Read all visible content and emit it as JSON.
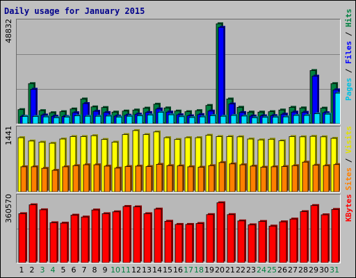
{
  "window": {
    "title": "Daily usage for January 2015"
  },
  "colors": {
    "pages": "#00e0ff",
    "files": "#0000ff",
    "hits": "#008040",
    "visits": "#ffff00",
    "sites": "#ff8000",
    "kbytes": "#ff0000",
    "weekday_label": "#000000",
    "weekend_label": "#008040"
  },
  "chart_data": [
    {
      "type": "bar",
      "panel": "hits-files-pages",
      "categories": [
        "1",
        "2",
        "3",
        "4",
        "5",
        "6",
        "7",
        "8",
        "9",
        "10",
        "11",
        "12",
        "13",
        "14",
        "15",
        "16",
        "17",
        "18",
        "19",
        "20",
        "21",
        "22",
        "23",
        "24",
        "25",
        "26",
        "27",
        "28",
        "29",
        "30",
        "31"
      ],
      "ymax_label": "48832",
      "ylim": [
        0,
        48832
      ],
      "grid": true,
      "series": [
        {
          "name": "Hits",
          "values": [
            6800,
            19300,
            6300,
            5300,
            5800,
            7100,
            11900,
            8100,
            7800,
            5600,
            6100,
            6600,
            7500,
            9400,
            7600,
            6100,
            5800,
            6300,
            8800,
            48100,
            11900,
            7900,
            5600,
            5600,
            5800,
            6600,
            7900,
            7600,
            25600,
            7500,
            19300
          ]
        },
        {
          "name": "Files",
          "values": [
            3600,
            16600,
            4200,
            3600,
            3500,
            5300,
            9700,
            6000,
            5400,
            3700,
            4100,
            4600,
            5400,
            7100,
            5600,
            4300,
            3800,
            4400,
            6100,
            46400,
            9500,
            5400,
            3700,
            3800,
            3900,
            4600,
            5600,
            5500,
            22900,
            5300,
            16300
          ]
        },
        {
          "name": "Pages",
          "values": [
            3500,
            3500,
            3300,
            2900,
            3200,
            3800,
            3600,
            3600,
            3700,
            3200,
            3600,
            3800,
            4200,
            5500,
            4300,
            3400,
            3000,
            3300,
            3900,
            3600,
            4000,
            3700,
            2900,
            3100,
            3200,
            3300,
            4000,
            4000,
            4800,
            4600,
            14700
          ]
        }
      ]
    },
    {
      "type": "bar",
      "panel": "visits-sites",
      "categories": [
        "1",
        "2",
        "3",
        "4",
        "5",
        "6",
        "7",
        "8",
        "9",
        "10",
        "11",
        "12",
        "13",
        "14",
        "15",
        "16",
        "17",
        "18",
        "19",
        "20",
        "21",
        "22",
        "23",
        "24",
        "25",
        "26",
        "27",
        "28",
        "29",
        "30",
        "31"
      ],
      "ymax_label": "1441",
      "ylim": [
        0,
        1441
      ],
      "grid": true,
      "series": [
        {
          "name": "Visits",
          "values": [
            1220,
            1145,
            1120,
            1095,
            1190,
            1245,
            1245,
            1265,
            1180,
            1120,
            1290,
            1380,
            1290,
            1350,
            1220,
            1180,
            1220,
            1220,
            1275,
            1245,
            1245,
            1240,
            1190,
            1170,
            1185,
            1150,
            1245,
            1240,
            1250,
            1240,
            1205
          ]
        },
        {
          "name": "Sites",
          "values": [
            565,
            565,
            530,
            485,
            565,
            590,
            610,
            610,
            580,
            535,
            570,
            580,
            570,
            620,
            590,
            585,
            565,
            555,
            590,
            660,
            630,
            610,
            580,
            555,
            565,
            570,
            590,
            670,
            600,
            590,
            615
          ]
        }
      ]
    },
    {
      "type": "bar",
      "panel": "kbytes",
      "categories": [
        "1",
        "2",
        "3",
        "4",
        "5",
        "6",
        "7",
        "8",
        "9",
        "10",
        "11",
        "12",
        "13",
        "14",
        "15",
        "16",
        "17",
        "18",
        "19",
        "20",
        "21",
        "22",
        "23",
        "24",
        "25",
        "26",
        "27",
        "28",
        "29",
        "30",
        "31"
      ],
      "ymax_label": "360570",
      "ylim": [
        0,
        360570
      ],
      "grid": true,
      "series": [
        {
          "name": "KBytes",
          "values": [
            265000,
            313000,
            286000,
            216000,
            214000,
            257000,
            247000,
            285000,
            265000,
            275000,
            304000,
            302000,
            265000,
            290000,
            224000,
            207000,
            207000,
            212000,
            260000,
            324000,
            260000,
            226000,
            205000,
            223000,
            198000,
            221000,
            236000,
            276000,
            309000,
            259000,
            288000
          ]
        }
      ]
    }
  ],
  "legend": {
    "pages": "Pages",
    "files": "Files",
    "hits": "Hits",
    "visits": "Visits",
    "sites": "Sites",
    "kbytes": "KBytes",
    "separator": " / "
  },
  "weekend_days": [
    "3",
    "4",
    "10",
    "11",
    "17",
    "18",
    "24",
    "25",
    "31"
  ]
}
